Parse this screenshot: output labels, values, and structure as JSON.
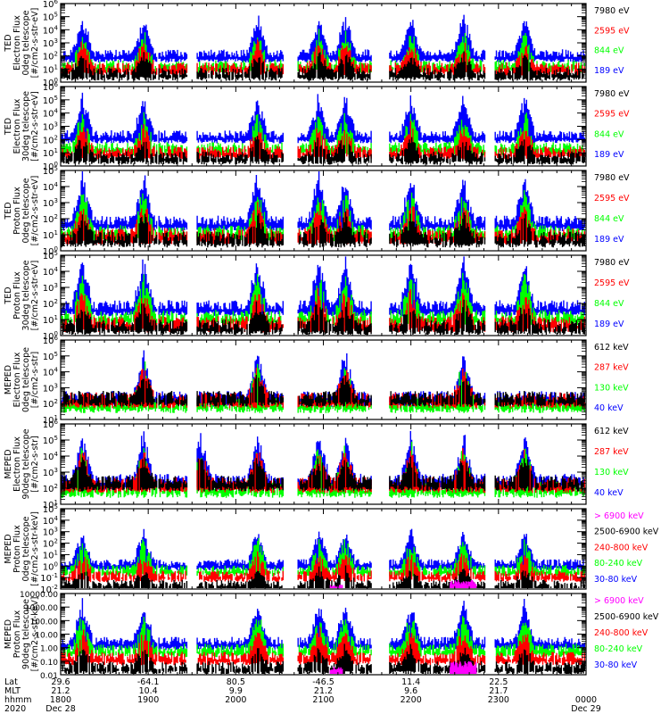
{
  "chart_data": [
    {
      "type": "line",
      "ylabel_lines": [
        "TED",
        "Electron Flux",
        "0deg telescope",
        "[#/cm2-s-str-eV]"
      ],
      "yscale": "log",
      "ylim": [
        1,
        1000000
      ],
      "ytick_labels": [
        "10^0",
        "10^1",
        "10^2",
        "10^3",
        "10^4",
        "10^5",
        "10^6"
      ],
      "legend": [
        {
          "label": "7980 eV",
          "color": "#000000"
        },
        {
          "label": "2595 eV",
          "color": "#ff0000"
        },
        {
          "label": "844 eV",
          "color": "#00ff00"
        },
        {
          "label": "189 eV",
          "color": "#0000ff"
        }
      ],
      "bursts_hours": [
        18.25,
        18.95,
        20.25,
        20.95,
        21.25,
        22.0,
        22.6,
        23.3
      ],
      "baseline_log": {
        "blue": 2.2,
        "green": 1.4,
        "red": 1.2,
        "black": 0.8
      }
    },
    {
      "type": "line",
      "ylabel_lines": [
        "TED",
        "Electron Flux",
        "30deg telescope",
        "[#/cm2-s-str-eV]"
      ],
      "yscale": "log",
      "ylim": [
        1,
        1000000
      ],
      "ytick_labels": [
        "10^0",
        "10^1",
        "10^2",
        "10^3",
        "10^4",
        "10^5",
        "10^6"
      ],
      "legend": [
        {
          "label": "7980 eV",
          "color": "#000000"
        },
        {
          "label": "2595 eV",
          "color": "#ff0000"
        },
        {
          "label": "844 eV",
          "color": "#00ff00"
        },
        {
          "label": "189 eV",
          "color": "#0000ff"
        }
      ],
      "bursts_hours": [
        18.25,
        18.95,
        20.25,
        20.95,
        21.25,
        22.0,
        22.6,
        23.3
      ],
      "baseline_log": {
        "blue": 2.4,
        "green": 1.5,
        "red": 1.2,
        "black": 0.8
      }
    },
    {
      "type": "line",
      "ylabel_lines": [
        "TED",
        "Proton Flux",
        "0deg telescope",
        "[#/cm2-s-str-eV]"
      ],
      "yscale": "log",
      "ylim": [
        1,
        100000
      ],
      "ytick_labels": [
        "10^0",
        "10^1",
        "10^2",
        "10^3",
        "10^4",
        "10^5"
      ],
      "legend": [
        {
          "label": "7980 eV",
          "color": "#000000"
        },
        {
          "label": "2595 eV",
          "color": "#ff0000"
        },
        {
          "label": "844 eV",
          "color": "#00ff00"
        },
        {
          "label": "189 eV",
          "color": "#0000ff"
        }
      ],
      "bursts_hours": [
        18.25,
        18.95,
        20.25,
        20.95,
        21.25,
        22.0,
        22.6,
        23.3
      ],
      "baseline_log": {
        "blue": 1.9,
        "green": 1.3,
        "red": 1.1,
        "black": 0.9
      }
    },
    {
      "type": "line",
      "ylabel_lines": [
        "TED",
        "Proton Flux",
        "30deg telescope",
        "[#/cm2-s-str-eV]"
      ],
      "yscale": "log",
      "ylim": [
        1,
        100000
      ],
      "ytick_labels": [
        "10^0",
        "10^1",
        "10^2",
        "10^3",
        "10^4",
        "10^5"
      ],
      "legend": [
        {
          "label": "7980 eV",
          "color": "#000000"
        },
        {
          "label": "2595 eV",
          "color": "#ff0000"
        },
        {
          "label": "844 eV",
          "color": "#00ff00"
        },
        {
          "label": "189 eV",
          "color": "#0000ff"
        }
      ],
      "bursts_hours": [
        18.25,
        18.95,
        20.25,
        20.95,
        21.25,
        22.0,
        22.6,
        23.3
      ],
      "baseline_log": {
        "blue": 1.9,
        "green": 1.3,
        "red": 0.9,
        "black": 0.7
      }
    },
    {
      "type": "line",
      "ylabel_lines": [
        "MEPED",
        "Electron Flux",
        "0deg telescope",
        "[#/cm2-s-str]"
      ],
      "yscale": "log",
      "ylim": [
        10,
        1000000
      ],
      "ytick_labels": [
        "10^1",
        "10^2",
        "10^3",
        "10^4",
        "10^5",
        "10^6"
      ],
      "legend": [
        {
          "label": "612 keV",
          "color": "#000000"
        },
        {
          "label": "287 keV",
          "color": "#ff0000"
        },
        {
          "label": "130 keV",
          "color": "#00ff00"
        },
        {
          "label": "40 keV",
          "color": "#0000ff"
        }
      ],
      "bursts_hours": [
        18.95,
        20.25,
        21.25,
        22.6
      ],
      "baseline_log": {
        "blue": 2.5,
        "green": 2.1,
        "red": 2.4,
        "black": 2.5
      }
    },
    {
      "type": "line",
      "ylabel_lines": [
        "MEPED",
        "Electron Flux",
        "90deg telescope",
        "[#/cm2-s-str]"
      ],
      "yscale": "log",
      "ylim": [
        10,
        1000000
      ],
      "ytick_labels": [
        "10^1",
        "10^2",
        "10^3",
        "10^4",
        "10^5",
        "10^6"
      ],
      "legend": [
        {
          "label": "612 keV",
          "color": "#000000"
        },
        {
          "label": "287 keV",
          "color": "#ff0000"
        },
        {
          "label": "130 keV",
          "color": "#00ff00"
        },
        {
          "label": "40 keV",
          "color": "#0000ff"
        }
      ],
      "bursts_hours": [
        18.25,
        18.95,
        19.6,
        20.25,
        20.95,
        21.25,
        22.0,
        22.6,
        23.3
      ],
      "baseline_log": {
        "blue": 2.6,
        "green": 2.1,
        "red": 2.4,
        "black": 2.5
      }
    },
    {
      "type": "line",
      "ylabel_lines": [
        "MEPED",
        "Proton Flux",
        "0deg telescope",
        "[#/cm2-s-str-keV]"
      ],
      "yscale": "log",
      "ylim": [
        0.01,
        100000
      ],
      "ytick_labels": [
        "10^-2",
        "10^-1",
        "10^0",
        "10^1",
        "10^2",
        "10^3",
        "10^4",
        "10^5"
      ],
      "legend": [
        {
          "label": "> 6900 keV",
          "color": "#ff00ff"
        },
        {
          "label": "2500-6900 keV",
          "color": "#000000"
        },
        {
          "label": "240-800 keV",
          "color": "#ff0000"
        },
        {
          "label": "80-240 keV",
          "color": "#00ff00"
        },
        {
          "label": "30-80 keV",
          "color": "#0000ff"
        }
      ],
      "bursts_hours": [
        18.25,
        18.95,
        20.25,
        20.95,
        21.25,
        22.0,
        22.6,
        23.3
      ],
      "baseline_log": {
        "blue": 0.3,
        "green": -0.2,
        "red": -0.7,
        "black": -1.5
      }
    },
    {
      "type": "line",
      "ylabel_lines": [
        "MEPED",
        "Proton Flux",
        "90deg telescope",
        "[#/cm2-s-str-keV]"
      ],
      "yscale": "log",
      "ylim": [
        0.01,
        10000
      ],
      "ytick_labels": [
        "0.01",
        "0.10",
        "1.00",
        "10.00",
        "100.00",
        "1000.00",
        "10000.00"
      ],
      "legend": [
        {
          "label": "> 6900 keV",
          "color": "#ff00ff"
        },
        {
          "label": "2500-6900 keV",
          "color": "#000000"
        },
        {
          "label": "240-800 keV",
          "color": "#ff0000"
        },
        {
          "label": "80-240 keV",
          "color": "#00ff00"
        },
        {
          "label": "30-80 keV",
          "color": "#0000ff"
        }
      ],
      "bursts_hours": [
        18.25,
        18.95,
        20.25,
        20.95,
        21.25,
        22.0,
        22.6,
        23.3
      ],
      "baseline_log": {
        "blue": 0.5,
        "green": 0.0,
        "red": -0.6,
        "black": -1.3
      }
    }
  ],
  "x_axis": {
    "range_hours": [
      18,
      24
    ],
    "row_labels": [
      "Lat",
      "MLT",
      "hhmm",
      "2020"
    ],
    "ticks": [
      {
        "lat": "29.6",
        "mlt": "21.2",
        "hhmm": "1800",
        "date": "Dec 28"
      },
      {
        "lat": "-64.1",
        "mlt": "10.4",
        "hhmm": "1900",
        "date": ""
      },
      {
        "lat": "80.5",
        "mlt": "9.9",
        "hhmm": "2000",
        "date": ""
      },
      {
        "lat": "-46.5",
        "mlt": "21.2",
        "hhmm": "2100",
        "date": ""
      },
      {
        "lat": "11.4",
        "mlt": "9.6",
        "hhmm": "2200",
        "date": ""
      },
      {
        "lat": "22.5",
        "mlt": "21.7",
        "hhmm": "2300",
        "date": ""
      },
      {
        "lat": "",
        "mlt": "",
        "hhmm": "0000",
        "date": "Dec 29"
      }
    ]
  }
}
